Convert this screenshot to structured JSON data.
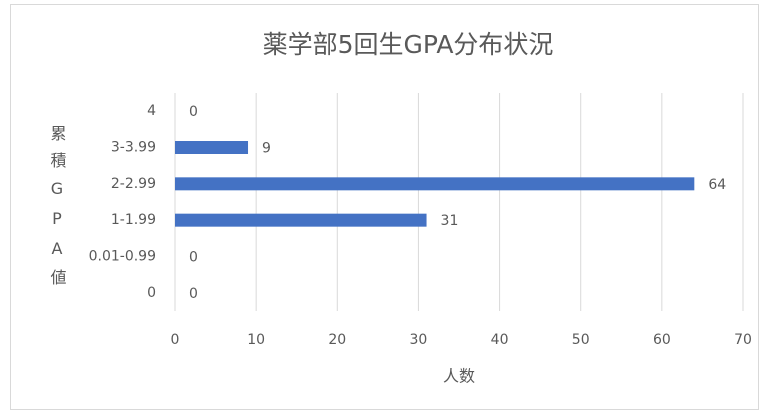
{
  "chart_data": {
    "type": "barh",
    "title": "薬学部5回生GPA分布状況",
    "categories": [
      "4",
      "3-3.99",
      "2-2.99",
      "1-1.99",
      "0.01-0.99",
      "0"
    ],
    "values": [
      0,
      9,
      64,
      31,
      0,
      0
    ],
    "color": "#4472c4",
    "xlim": [
      0,
      70
    ],
    "xticks": [
      0,
      10,
      20,
      30,
      40,
      50,
      60,
      70
    ],
    "x_label": "人数",
    "y_label": "累積GPA値",
    "grid": true
  }
}
